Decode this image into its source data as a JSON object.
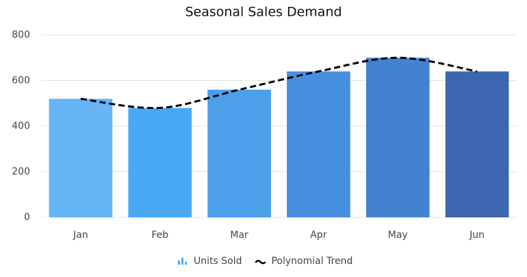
{
  "chart_data": {
    "type": "bar",
    "title": "Seasonal Sales Demand",
    "categories": [
      "Jan",
      "Feb",
      "Mar",
      "Apr",
      "May",
      "Jun"
    ],
    "series": [
      {
        "name": "Units Sold",
        "type": "bar",
        "colors": [
          "#66b5f6",
          "#4aa9f5",
          "#4c9fe9",
          "#4790e0",
          "#4282d0",
          "#3c67b0"
        ],
        "color": "#4aa9f5",
        "values": [
          520,
          480,
          560,
          640,
          700,
          640
        ]
      },
      {
        "name": "Polynomial Trend",
        "type": "line",
        "color": "#000000",
        "dashed": true,
        "values": [
          520,
          480,
          560,
          640,
          700,
          640
        ]
      }
    ],
    "ylim": [
      0,
      800
    ],
    "yticks": [
      0,
      200,
      400,
      600,
      800
    ],
    "grid": true
  }
}
